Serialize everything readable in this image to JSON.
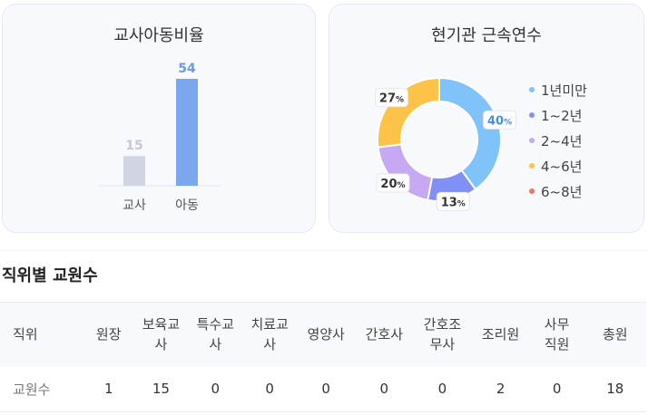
{
  "ratio_card": {
    "title": "교사아동비율",
    "chart_data": {
      "type": "bar",
      "categories": [
        "교사",
        "아동"
      ],
      "values": [
        15,
        54
      ],
      "value_labels": [
        "15",
        "54"
      ],
      "colors": [
        "#cfd5e3",
        "#7aa7ee"
      ],
      "label_colors": [
        "#c2c9d9",
        "#6a9be8"
      ],
      "ylim": [
        0,
        54
      ]
    }
  },
  "tenure_card": {
    "title": "현기관 근속연수",
    "chart_data": {
      "type": "pie",
      "categories": [
        "1년미만",
        "1~2년",
        "2~4년",
        "4~6년",
        "6~8년"
      ],
      "values": [
        40,
        13,
        20,
        27,
        0
      ],
      "value_labels": [
        "40",
        "13",
        "20",
        "27",
        ""
      ],
      "unit": "%",
      "colors": [
        "#80c3fb",
        "#8190f6",
        "#c7a9f3",
        "#fcc348",
        "#f4735a"
      ]
    }
  },
  "staff_section": {
    "title": "직위별 교원수",
    "table": {
      "columns": [
        "직위",
        "원장",
        "보육교사",
        "특수교사",
        "치료교사",
        "영양사",
        "간호사",
        "간호조무사",
        "조리원",
        "사무직원",
        "총원"
      ],
      "rows": [
        [
          "교원수",
          "1",
          "15",
          "0",
          "0",
          "0",
          "0",
          "0",
          "2",
          "0",
          "18"
        ]
      ]
    }
  }
}
